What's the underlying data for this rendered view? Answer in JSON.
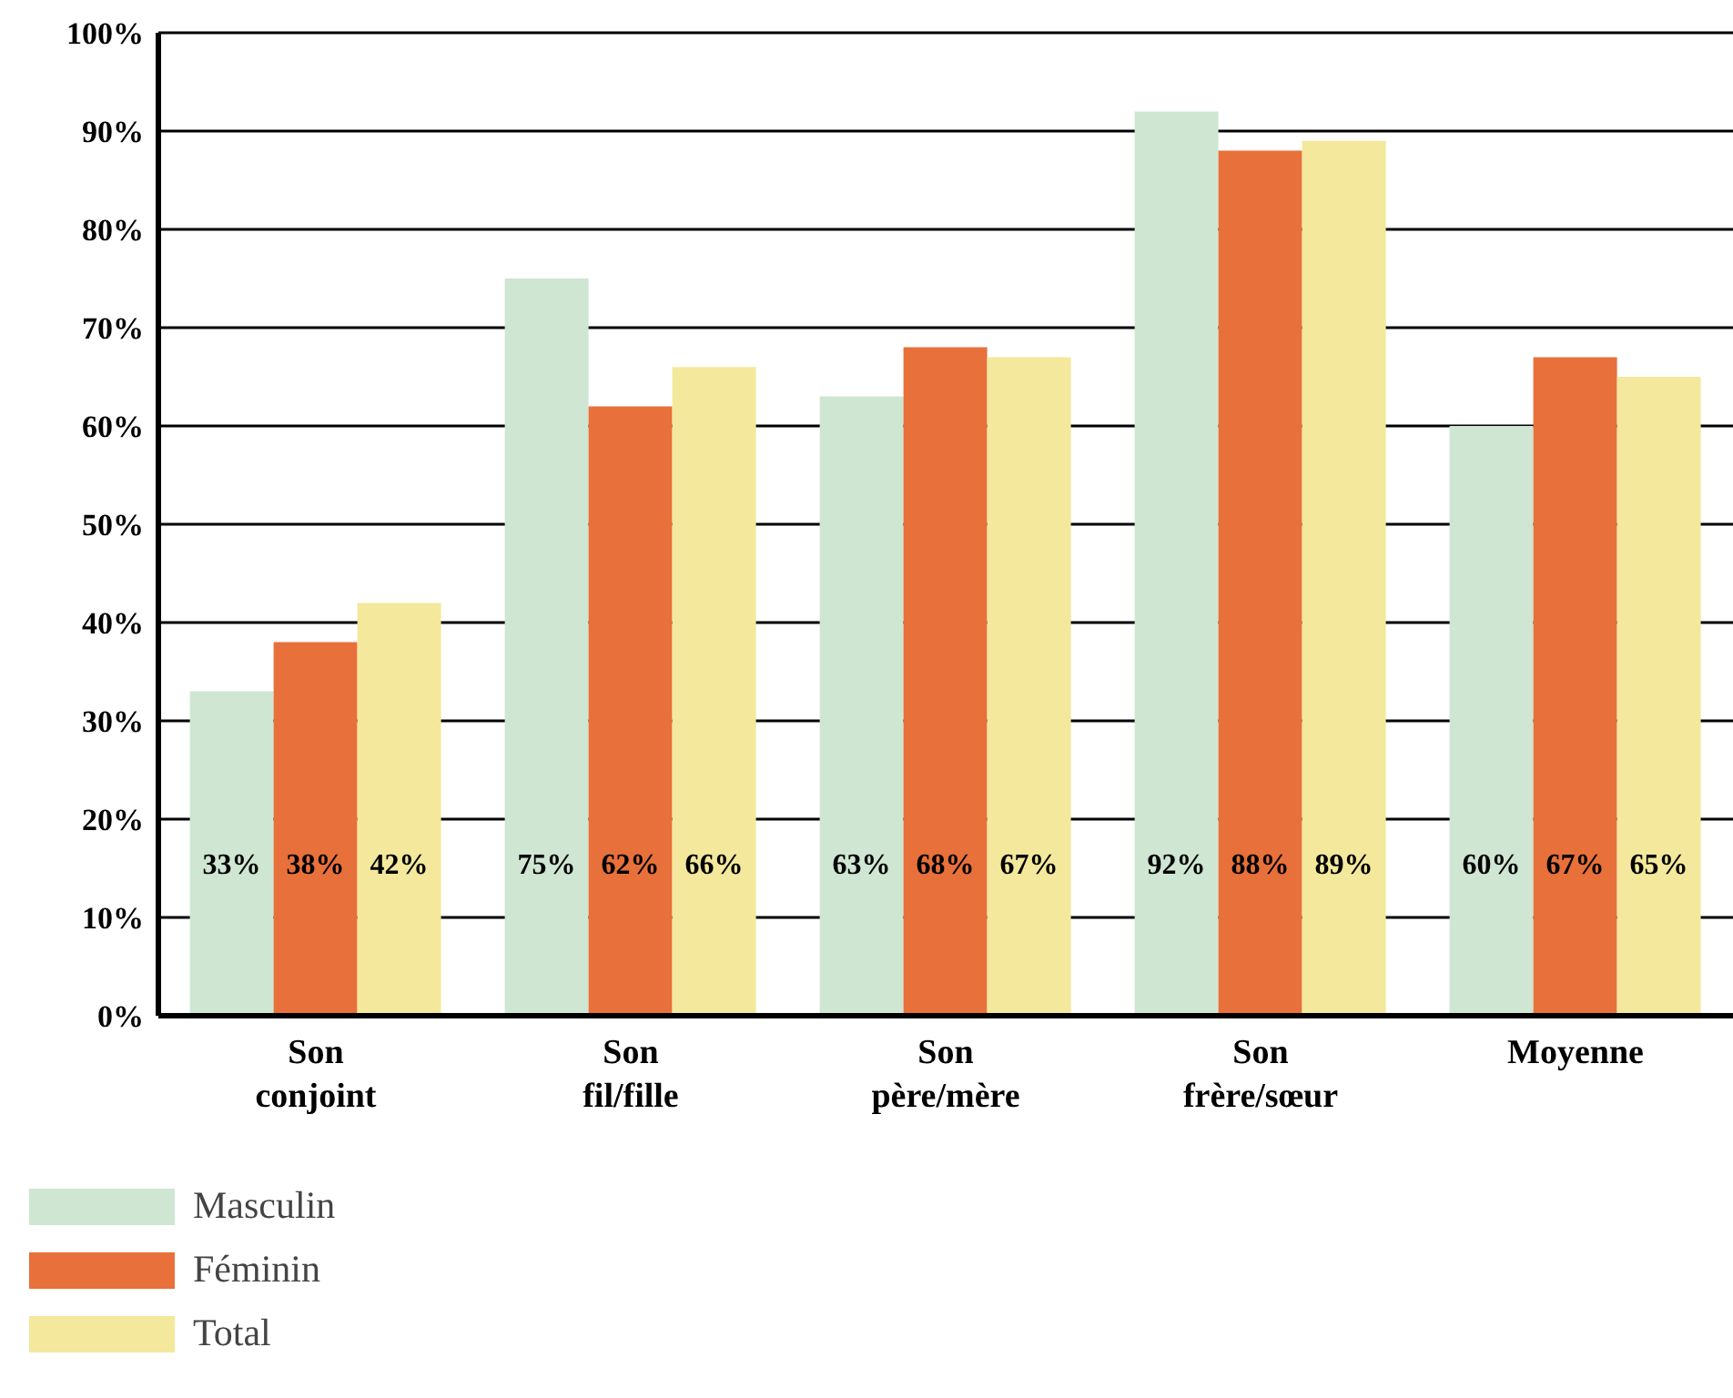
{
  "chart_data": {
    "type": "bar",
    "categories": [
      "Son conjoint",
      "Son fil/fille",
      "Son père/mère",
      "Son frère/sœur",
      "Moyenne"
    ],
    "series": [
      {
        "name": "Masculin",
        "color": "#cfe6d2",
        "values": [
          33,
          75,
          63,
          92,
          60
        ],
        "value_labels": [
          "33%",
          "75%",
          "63%",
          "92%",
          "60%"
        ]
      },
      {
        "name": "Féminin",
        "color": "#e8703a",
        "values": [
          38,
          62,
          68,
          88,
          67
        ],
        "value_labels": [
          "38%",
          "62%",
          "68%",
          "88%",
          "67%"
        ]
      },
      {
        "name": "Total",
        "color": "#f3e89c",
        "values": [
          42,
          66,
          67,
          89,
          65
        ],
        "value_labels": [
          "42%",
          "66%",
          "67%",
          "89%",
          "65%"
        ]
      }
    ],
    "ylim": [
      0,
      100
    ],
    "yticks": [
      {
        "value": 0,
        "label": "0%"
      },
      {
        "value": 10,
        "label": "10%"
      },
      {
        "value": 20,
        "label": "20%"
      },
      {
        "value": 30,
        "label": "30%"
      },
      {
        "value": 40,
        "label": "40%"
      },
      {
        "value": 50,
        "label": "50%"
      },
      {
        "value": 60,
        "label": "60%"
      },
      {
        "value": 70,
        "label": "70%"
      },
      {
        "value": 80,
        "label": "80%"
      },
      {
        "value": 90,
        "label": "90%"
      },
      {
        "value": 100,
        "label": "100%"
      }
    ],
    "grid": "y",
    "legend": "bottom left"
  }
}
